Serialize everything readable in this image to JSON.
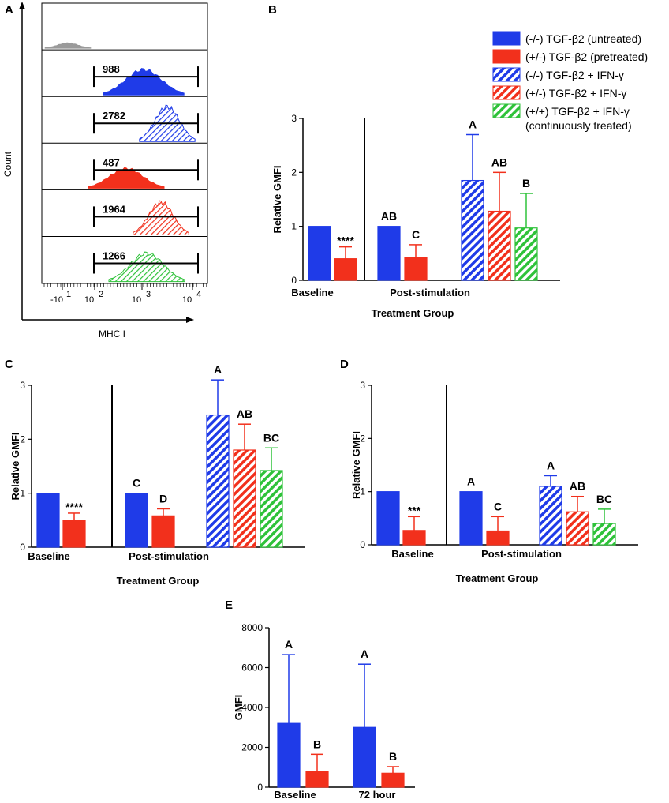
{
  "colors": {
    "blue": "#1f3be8",
    "red": "#f2301c",
    "green": "#2fc23a",
    "gray": "#9a9a9a",
    "black": "#000000"
  },
  "legend": [
    {
      "label": "(-/-) TGF-β2 (untreated)",
      "color": "blue",
      "hatched": false
    },
    {
      "label": "(+/-) TGF-β2 (pretreated)",
      "color": "red",
      "hatched": false
    },
    {
      "label": "(-/-)  TGF-β2 + IFN-γ",
      "color": "blue",
      "hatched": true
    },
    {
      "label": "(+/-) TGF-β2 + IFN-γ",
      "color": "red",
      "hatched": true
    },
    {
      "label": "(+/+) TGF-β2 + IFN-γ",
      "color": "green",
      "hatched": true
    }
  ],
  "legend_extra": "(continuously treated)",
  "panel_a": {
    "letter": "A",
    "ylabel": "Count",
    "xlabel": "MHC I",
    "x_ticks": [
      "-10",
      "1",
      "10",
      "2",
      "10",
      "3",
      "10",
      "4"
    ],
    "histograms": [
      {
        "color": "gray",
        "hatched": false,
        "gate_value": "",
        "peak": 0.12
      },
      {
        "color": "blue",
        "hatched": false,
        "gate_value": "988",
        "peak": 0.58
      },
      {
        "color": "blue",
        "hatched": true,
        "gate_value": "2782",
        "peak": 0.8
      },
      {
        "color": "red",
        "hatched": false,
        "gate_value": "487",
        "peak": 0.45
      },
      {
        "color": "red",
        "hatched": true,
        "gate_value": "1964",
        "peak": 0.75
      },
      {
        "color": "green",
        "hatched": true,
        "gate_value": "1266",
        "peak": 0.65
      }
    ]
  },
  "chart_data": [
    {
      "panel": "B",
      "type": "bar",
      "ylabel": "Relative GMFI",
      "xlabel": "Treatment Group",
      "ylim": [
        0,
        3
      ],
      "yticks": [
        "0",
        "1",
        "2",
        "3"
      ],
      "groups": [
        "Baseline",
        "Post-stimulation"
      ],
      "bars": [
        {
          "group": "Baseline",
          "series": 0,
          "value": 1.0,
          "err": 0,
          "sig": ""
        },
        {
          "group": "Baseline",
          "series": 1,
          "value": 0.4,
          "err": 0.22,
          "sig": "****"
        },
        {
          "group": "Post-stimulation",
          "series": 0,
          "value": 1.0,
          "err": 0,
          "sig": "AB"
        },
        {
          "group": "Post-stimulation",
          "series": 1,
          "value": 0.42,
          "err": 0.24,
          "sig": "C"
        },
        {
          "group": "Post-stimulation",
          "series": 2,
          "value": 1.85,
          "err": 0.85,
          "sig": "A"
        },
        {
          "group": "Post-stimulation",
          "series": 3,
          "value": 1.28,
          "err": 0.72,
          "sig": "AB"
        },
        {
          "group": "Post-stimulation",
          "series": 4,
          "value": 0.97,
          "err": 0.64,
          "sig": "B"
        }
      ]
    },
    {
      "panel": "C",
      "type": "bar",
      "ylabel": "Relative GMFI",
      "xlabel": "Treatment Group",
      "ylim": [
        0,
        3
      ],
      "yticks": [
        "0",
        "1",
        "2",
        "3"
      ],
      "groups": [
        "Baseline",
        "Post-stimulation"
      ],
      "bars": [
        {
          "group": "Baseline",
          "series": 0,
          "value": 1.0,
          "err": 0,
          "sig": ""
        },
        {
          "group": "Baseline",
          "series": 1,
          "value": 0.5,
          "err": 0.13,
          "sig": "****"
        },
        {
          "group": "Post-stimulation",
          "series": 0,
          "value": 1.0,
          "err": 0,
          "sig": "C"
        },
        {
          "group": "Post-stimulation",
          "series": 1,
          "value": 0.58,
          "err": 0.13,
          "sig": "D"
        },
        {
          "group": "Post-stimulation",
          "series": 2,
          "value": 2.45,
          "err": 0.65,
          "sig": "A"
        },
        {
          "group": "Post-stimulation",
          "series": 3,
          "value": 1.8,
          "err": 0.48,
          "sig": "AB"
        },
        {
          "group": "Post-stimulation",
          "series": 4,
          "value": 1.42,
          "err": 0.42,
          "sig": "BC"
        }
      ]
    },
    {
      "panel": "D",
      "type": "bar",
      "ylabel": "Relative GMFI",
      "xlabel": "Treatment Group",
      "ylim": [
        0,
        3
      ],
      "yticks": [
        "0",
        "1",
        "2",
        "3"
      ],
      "groups": [
        "Baseline",
        "Post-stimulation"
      ],
      "bars": [
        {
          "group": "Baseline",
          "series": 0,
          "value": 1.0,
          "err": 0,
          "sig": ""
        },
        {
          "group": "Baseline",
          "series": 1,
          "value": 0.27,
          "err": 0.26,
          "sig": "***"
        },
        {
          "group": "Post-stimulation",
          "series": 0,
          "value": 1.0,
          "err": 0,
          "sig": "A"
        },
        {
          "group": "Post-stimulation",
          "series": 1,
          "value": 0.26,
          "err": 0.27,
          "sig": "C"
        },
        {
          "group": "Post-stimulation",
          "series": 2,
          "value": 1.1,
          "err": 0.2,
          "sig": "A"
        },
        {
          "group": "Post-stimulation",
          "series": 3,
          "value": 0.62,
          "err": 0.29,
          "sig": "AB"
        },
        {
          "group": "Post-stimulation",
          "series": 4,
          "value": 0.4,
          "err": 0.27,
          "sig": "BC"
        }
      ]
    },
    {
      "panel": "E",
      "type": "bar",
      "ylabel": "GMFI",
      "xlabel": "",
      "ylim": [
        0,
        8000
      ],
      "yticks": [
        "0",
        "2000",
        "4000",
        "6000",
        "8000"
      ],
      "groups": [
        "Baseline",
        "72 hour"
      ],
      "bars": [
        {
          "group": "Baseline",
          "series": 0,
          "value": 3200,
          "err": 3450,
          "sig": "A"
        },
        {
          "group": "Baseline",
          "series": 1,
          "value": 800,
          "err": 850,
          "sig": "B"
        },
        {
          "group": "72 hour",
          "series": 0,
          "value": 3000,
          "err": 3170,
          "sig": "A"
        },
        {
          "group": "72 hour",
          "series": 1,
          "value": 700,
          "err": 330,
          "sig": "B"
        }
      ]
    }
  ]
}
